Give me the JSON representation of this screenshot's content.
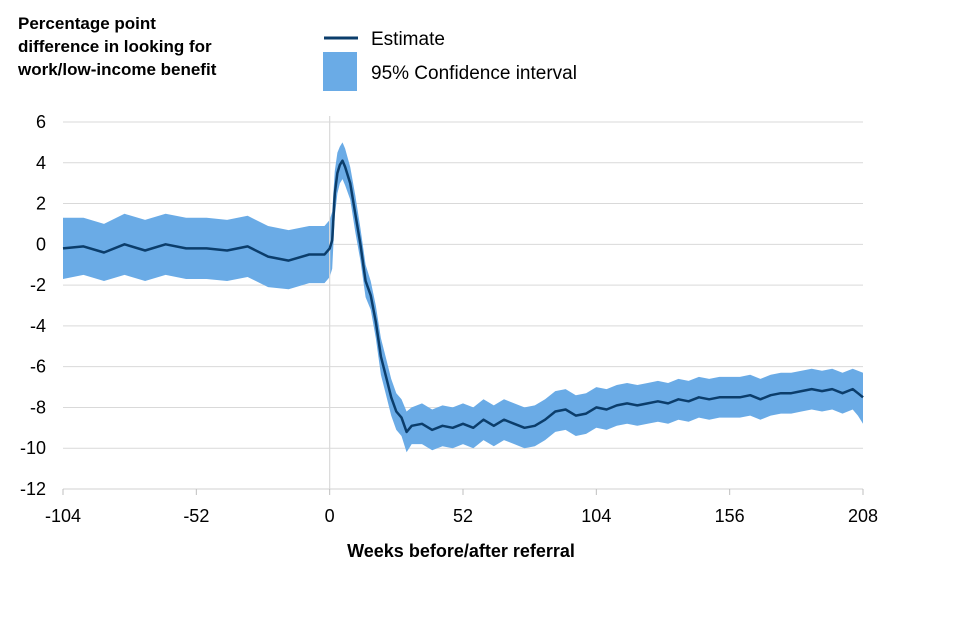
{
  "chart_data": {
    "type": "line",
    "title": [
      "Percentage point",
      "difference in looking for",
      "work/low-income benefit"
    ],
    "xlabel": "Weeks before/after referral",
    "ylabel": "",
    "xlim": [
      -104,
      208
    ],
    "ylim": [
      -12,
      6
    ],
    "x_ticks": [
      "-104",
      "-52",
      "0",
      "52",
      "104",
      "156",
      "208"
    ],
    "y_ticks": [
      "6",
      "4",
      "2",
      "0",
      "-2",
      "-4",
      "-6",
      "-8",
      "-10",
      "-12"
    ],
    "grid": "horizontal",
    "legend": {
      "placement": "top",
      "entries": [
        {
          "label": "Estimate",
          "kind": "line",
          "color": "#0b3d6b"
        },
        {
          "label": "95% Confidence interval",
          "kind": "band",
          "color": "#6aabe6"
        }
      ]
    },
    "series": [
      {
        "name": "Estimate",
        "color": "#0b3d6b",
        "x": [
          -104,
          -96,
          -88,
          -80,
          -72,
          -64,
          -56,
          -48,
          -40,
          -32,
          -24,
          -16,
          -8,
          -2,
          0,
          1,
          2,
          3,
          4,
          5,
          6,
          8,
          10,
          12,
          14,
          16,
          18,
          20,
          22,
          24,
          26,
          28,
          30,
          32,
          36,
          40,
          44,
          48,
          52,
          56,
          60,
          64,
          68,
          72,
          76,
          80,
          84,
          88,
          92,
          96,
          100,
          104,
          108,
          112,
          116,
          120,
          124,
          128,
          132,
          136,
          140,
          144,
          148,
          152,
          156,
          160,
          164,
          168,
          172,
          176,
          180,
          184,
          188,
          192,
          196,
          200,
          204,
          206,
          208
        ],
        "values": [
          -0.2,
          -0.1,
          -0.4,
          0.0,
          -0.3,
          0.0,
          -0.2,
          -0.2,
          -0.3,
          -0.1,
          -0.6,
          -0.8,
          -0.5,
          -0.5,
          -0.2,
          0.2,
          2.5,
          3.5,
          3.9,
          4.1,
          3.8,
          3.0,
          1.5,
          0.0,
          -1.8,
          -2.5,
          -3.8,
          -5.5,
          -6.5,
          -7.5,
          -8.2,
          -8.5,
          -9.2,
          -8.9,
          -8.8,
          -9.1,
          -8.9,
          -9.0,
          -8.8,
          -9.0,
          -8.6,
          -8.9,
          -8.6,
          -8.8,
          -9.0,
          -8.9,
          -8.6,
          -8.2,
          -8.1,
          -8.4,
          -8.3,
          -8.0,
          -8.1,
          -7.9,
          -7.8,
          -7.9,
          -7.8,
          -7.7,
          -7.8,
          -7.6,
          -7.7,
          -7.5,
          -7.6,
          -7.5,
          -7.5,
          -7.5,
          -7.4,
          -7.6,
          -7.4,
          -7.3,
          -7.3,
          -7.2,
          -7.1,
          -7.2,
          -7.1,
          -7.3,
          -7.1,
          -7.3,
          -7.5
        ]
      },
      {
        "name": "95% Confidence interval",
        "color": "#6aabe6",
        "x": [
          -104,
          -96,
          -88,
          -80,
          -72,
          -64,
          -56,
          -48,
          -40,
          -32,
          -24,
          -16,
          -8,
          -2,
          0,
          1,
          2,
          3,
          4,
          5,
          6,
          8,
          10,
          12,
          14,
          16,
          18,
          20,
          22,
          24,
          26,
          28,
          30,
          32,
          36,
          40,
          44,
          48,
          52,
          56,
          60,
          64,
          68,
          72,
          76,
          80,
          84,
          88,
          92,
          96,
          100,
          104,
          108,
          112,
          116,
          120,
          124,
          128,
          132,
          136,
          140,
          144,
          148,
          152,
          156,
          160,
          164,
          168,
          172,
          176,
          180,
          184,
          188,
          192,
          196,
          200,
          204,
          206,
          208
        ],
        "upper": [
          1.3,
          1.3,
          1.0,
          1.5,
          1.2,
          1.5,
          1.3,
          1.3,
          1.2,
          1.4,
          0.9,
          0.7,
          0.9,
          0.9,
          1.2,
          1.6,
          3.6,
          4.5,
          4.8,
          5.0,
          4.7,
          3.8,
          2.4,
          0.8,
          -1.0,
          -1.8,
          -3.0,
          -4.6,
          -5.6,
          -6.6,
          -7.3,
          -7.6,
          -8.2,
          -8.0,
          -7.8,
          -8.1,
          -7.9,
          -8.0,
          -7.8,
          -8.0,
          -7.6,
          -7.9,
          -7.6,
          -7.8,
          -8.0,
          -7.9,
          -7.6,
          -7.2,
          -7.1,
          -7.4,
          -7.3,
          -7.0,
          -7.1,
          -6.9,
          -6.8,
          -6.9,
          -6.8,
          -6.7,
          -6.8,
          -6.6,
          -6.7,
          -6.5,
          -6.6,
          -6.5,
          -6.5,
          -6.5,
          -6.4,
          -6.6,
          -6.4,
          -6.3,
          -6.3,
          -6.2,
          -6.1,
          -6.2,
          -6.1,
          -6.3,
          -6.1,
          -6.2,
          -6.3
        ],
        "lower": [
          -1.7,
          -1.5,
          -1.8,
          -1.5,
          -1.8,
          -1.5,
          -1.7,
          -1.7,
          -1.8,
          -1.6,
          -2.1,
          -2.2,
          -1.9,
          -1.9,
          -1.6,
          -1.2,
          1.4,
          2.5,
          3.0,
          3.2,
          2.9,
          2.2,
          0.6,
          -0.8,
          -2.6,
          -3.2,
          -4.6,
          -6.4,
          -7.4,
          -8.4,
          -9.1,
          -9.4,
          -10.2,
          -9.8,
          -9.8,
          -10.1,
          -9.9,
          -10.0,
          -9.8,
          -10.0,
          -9.6,
          -9.9,
          -9.6,
          -9.8,
          -10.0,
          -9.9,
          -9.6,
          -9.2,
          -9.1,
          -9.4,
          -9.3,
          -9.0,
          -9.1,
          -8.9,
          -8.8,
          -8.9,
          -8.8,
          -8.7,
          -8.8,
          -8.6,
          -8.7,
          -8.5,
          -8.6,
          -8.5,
          -8.5,
          -8.5,
          -8.4,
          -8.6,
          -8.4,
          -8.3,
          -8.3,
          -8.2,
          -8.1,
          -8.2,
          -8.1,
          -8.3,
          -8.1,
          -8.4,
          -8.8
        ]
      }
    ]
  }
}
